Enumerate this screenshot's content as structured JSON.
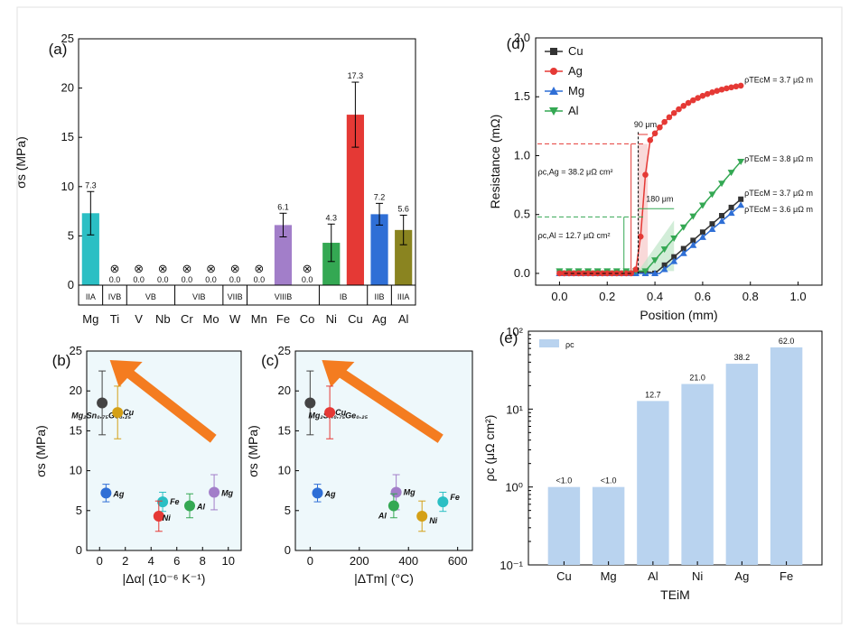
{
  "colors": {
    "frame": "#888888",
    "panel_bg": "#eef8fb",
    "arrow": "#f47c20",
    "cu": "#333333",
    "ag": "#e53935",
    "mg": "#2f6fd6",
    "al": "#34a853",
    "bar_e": "#b9d3ef"
  },
  "chart_data": [
    {
      "panel": "(a)",
      "type": "bar",
      "ylabel": "σs (MPa)",
      "ylim": [
        0,
        25
      ],
      "yticks": [
        "0",
        "5",
        "10",
        "15",
        "20",
        "25"
      ],
      "categories": [
        "Mg",
        "Ti",
        "V",
        "Nb",
        "Cr",
        "Mo",
        "W",
        "Mn",
        "Fe",
        "Co",
        "Ni",
        "Cu",
        "Ag",
        "Al"
      ],
      "values": [
        7.3,
        0.0,
        0.0,
        0.0,
        0.0,
        0.0,
        0.0,
        0.0,
        6.1,
        0.0,
        4.3,
        17.3,
        7.2,
        5.6
      ],
      "value_labels": [
        "7.3",
        "0.0",
        "0.0",
        "0.0",
        "0.0",
        "0.0",
        "0.0",
        "0.0",
        "6.1",
        "0.0",
        "4.3",
        "17.3",
        "7.2",
        "5.6"
      ],
      "errors": [
        2.2,
        0,
        0,
        0,
        0,
        0,
        0,
        0,
        1.2,
        0,
        1.9,
        3.3,
        1.1,
        1.5
      ],
      "bar_colors": [
        "#2bbfc4",
        "",
        "",
        "",
        "",
        "",
        "",
        "",
        "#a27ec9",
        "",
        "#34a853",
        "#e53935",
        "#2f6fd6",
        "#8a8420"
      ],
      "failed_marker": "⊗",
      "groups": [
        {
          "label": "IIA",
          "span": [
            0,
            0
          ]
        },
        {
          "label": "IVB",
          "span": [
            1,
            1
          ]
        },
        {
          "label": "VB",
          "span": [
            2,
            3
          ]
        },
        {
          "label": "VIB",
          "span": [
            4,
            5
          ]
        },
        {
          "label": "VIIB",
          "span": [
            6,
            6
          ]
        },
        {
          "label": "VIIIB",
          "span": [
            7,
            9
          ]
        },
        {
          "label": "IB",
          "span": [
            10,
            11
          ]
        },
        {
          "label": "IIB",
          "span": [
            12,
            12
          ]
        },
        {
          "label": "IIIA",
          "span": [
            13,
            13
          ]
        }
      ]
    },
    {
      "panel": "(b)",
      "type": "scatter",
      "xlabel": "|Δα| (10⁻⁶ K⁻¹)",
      "ylabel": "σs (MPa)",
      "xlim": [
        -1,
        11
      ],
      "ylim": [
        0,
        25
      ],
      "xticks": [
        "0",
        "2",
        "4",
        "6",
        "8",
        "10"
      ],
      "yticks": [
        "0",
        "5",
        "10",
        "15",
        "20",
        "25"
      ],
      "points": [
        {
          "name": "Mg₂Sn₀.₇₅Ge₀.₂₅",
          "x": 0.2,
          "y": 18.5,
          "err": 4.0,
          "color": "#444444"
        },
        {
          "name": "Cu",
          "x": 1.4,
          "y": 17.3,
          "err": 3.3,
          "color": "#d4a017"
        },
        {
          "name": "Ag",
          "x": 0.5,
          "y": 7.2,
          "err": 1.1,
          "color": "#2f6fd6"
        },
        {
          "name": "Fe",
          "x": 4.9,
          "y": 6.1,
          "err": 1.2,
          "color": "#2bbfc4"
        },
        {
          "name": "Ni",
          "x": 4.6,
          "y": 4.3,
          "err": 1.9,
          "color": "#e53935"
        },
        {
          "name": "Al",
          "x": 7.0,
          "y": 5.6,
          "err": 1.5,
          "color": "#34a853"
        },
        {
          "name": "Mg",
          "x": 8.9,
          "y": 7.3,
          "err": 2.2,
          "color": "#a27ec9"
        }
      ]
    },
    {
      "panel": "(c)",
      "type": "scatter",
      "xlabel": "|ΔTm| (°C)",
      "ylabel": "σs (MPa)",
      "xlim": [
        -60,
        660
      ],
      "ylim": [
        0,
        25
      ],
      "xticks": [
        "0",
        "200",
        "400",
        "600"
      ],
      "yticks": [
        "0",
        "5",
        "10",
        "15",
        "20",
        "25"
      ],
      "points": [
        {
          "name": "Mg₂Sn₀.₇₅Ge₀.₂₅",
          "x": 0,
          "y": 18.5,
          "err": 4.0,
          "color": "#444444"
        },
        {
          "name": "Cu",
          "x": 80,
          "y": 17.3,
          "err": 3.3,
          "color": "#e53935"
        },
        {
          "name": "Ag",
          "x": 30,
          "y": 7.2,
          "err": 1.1,
          "color": "#2f6fd6"
        },
        {
          "name": "Mg",
          "x": 350,
          "y": 7.3,
          "err": 2.2,
          "color": "#a27ec9"
        },
        {
          "name": "Al",
          "x": 340,
          "y": 5.6,
          "err": 1.5,
          "color": "#34a853"
        },
        {
          "name": "Ni",
          "x": 455,
          "y": 4.3,
          "err": 1.9,
          "color": "#d4a017"
        },
        {
          "name": "Fe",
          "x": 540,
          "y": 6.1,
          "err": 1.2,
          "color": "#2bbfc4"
        }
      ]
    },
    {
      "panel": "(d)",
      "type": "line",
      "xlabel": "Position (mm)",
      "ylabel": "Resistance (mΩ)",
      "xlim": [
        -0.1,
        1.1
      ],
      "ylim": [
        -0.1,
        2.0
      ],
      "xticks": [
        "0.0",
        "0.2",
        "0.4",
        "0.6",
        "0.8",
        "1.0"
      ],
      "yticks": [
        "0.0",
        "0.5",
        "1.0",
        "1.5",
        "2.0"
      ],
      "legend": [
        "Cu",
        "Ag",
        "Mg",
        "Al"
      ],
      "annotations": {
        "ag_rho": "ρTEcM = 3.7 μΩ m",
        "al_rho": "ρTEcM = 3.8 μΩ m",
        "cu_rho": "ρTEcM = 3.7 μΩ m",
        "mg_rho": "ρTEcM = 3.6 μΩ m",
        "ag_rc": "ρc,Ag = 38.2 μΩ cm²",
        "al_rc": "ρc,Al = 12.7 μΩ cm²",
        "w90": "90 μm",
        "w180": "180 μm"
      }
    },
    {
      "panel": "(e)",
      "type": "bar",
      "log_y": true,
      "xlabel": "TEiM",
      "ylabel": "ρc (μΩ cm²)",
      "ylim": [
        0.1,
        100
      ],
      "yticks": [
        "10⁻¹",
        "10⁰",
        "10¹",
        "10²"
      ],
      "legend": [
        "ρc"
      ],
      "categories": [
        "Cu",
        "Mg",
        "Al",
        "Ni",
        "Ag",
        "Fe"
      ],
      "values": [
        1.0,
        1.0,
        12.7,
        21.0,
        38.2,
        62.0
      ],
      "value_labels": [
        "<1.0",
        "<1.0",
        "12.7",
        "21.0",
        "38.2",
        "62.0"
      ]
    }
  ]
}
